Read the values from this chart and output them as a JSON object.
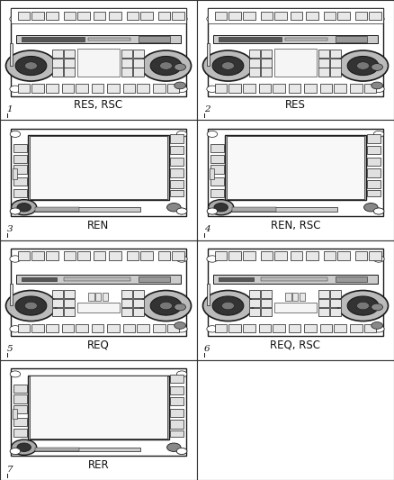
{
  "panels": [
    {
      "num": "1",
      "label": "RES, RSC",
      "type": "RES"
    },
    {
      "num": "2",
      "label": "RES",
      "type": "RES"
    },
    {
      "num": "3",
      "label": "REN",
      "type": "REN"
    },
    {
      "num": "4",
      "label": "REN, RSC",
      "type": "REN"
    },
    {
      "num": "5",
      "label": "REQ",
      "type": "REQ"
    },
    {
      "num": "6",
      "label": "REQ, RSC",
      "type": "REQ"
    },
    {
      "num": "7",
      "label": "RER",
      "type": "RER"
    },
    {
      "num": "",
      "label": "",
      "type": "EMPTY"
    }
  ],
  "bg_color": "#ffffff",
  "lc": "#1a1a1a",
  "label_fontsize": 8.5,
  "num_fontsize": 7.5
}
